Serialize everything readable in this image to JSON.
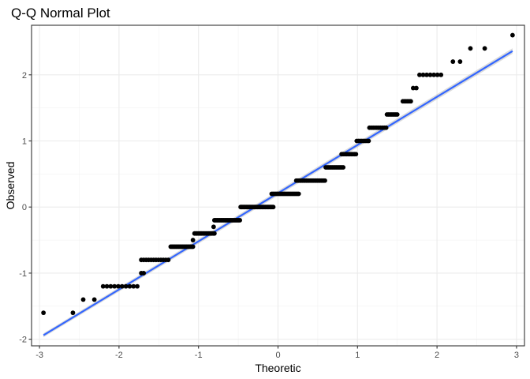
{
  "chart_data": {
    "type": "scatter",
    "title": "Q-Q Normal Plot",
    "xlabel": "Theoretic",
    "ylabel": "Observed",
    "xlim": [
      -3.1,
      3.1
    ],
    "ylim": [
      -2.1,
      2.75
    ],
    "x_ticks": [
      -3,
      -2,
      -1,
      0,
      1,
      2,
      3
    ],
    "x_tick_labels": [
      "-3",
      "-2",
      "-1",
      "0",
      "1",
      "2",
      "3"
    ],
    "y_ticks": [
      -2,
      -1,
      0,
      1,
      2
    ],
    "y_tick_labels": [
      "-2",
      "-1",
      "0",
      "1",
      "2"
    ],
    "grid": true,
    "reference_line": {
      "x1": -2.95,
      "y1": -1.94,
      "x2": 2.95,
      "y2": 2.36,
      "color": "#3366FF"
    },
    "point_color": "#000000",
    "runs": [
      {
        "y": -1.6,
        "x": [
          -2.95,
          -2.58
        ]
      },
      {
        "y": -1.4,
        "x": [
          -2.45,
          -2.31
        ]
      },
      {
        "y": -1.2,
        "x_from": -2.2,
        "x_to": -1.77,
        "n": 10
      },
      {
        "y": -1.0,
        "x_from": -1.72,
        "x_to": -1.69,
        "n": 2
      },
      {
        "y": -0.8,
        "x_from": -1.72,
        "x_to": -1.38,
        "n": 12
      },
      {
        "y": -0.6,
        "x_from": -1.35,
        "x_to": -1.07,
        "n": 18
      },
      {
        "y": -0.5,
        "x": [
          -1.07
        ]
      },
      {
        "y": -0.4,
        "x_from": -1.05,
        "x_to": -0.8,
        "n": 18
      },
      {
        "y": -0.3,
        "x": [
          -0.81
        ]
      },
      {
        "y": -0.2,
        "x_from": -0.8,
        "x_to": -0.48,
        "n": 20
      },
      {
        "y": 0.0,
        "x_from": -0.47,
        "x_to": -0.06,
        "n": 30
      },
      {
        "y": 0.2,
        "x_from": -0.08,
        "x_to": 0.26,
        "n": 22
      },
      {
        "y": 0.4,
        "x_from": 0.23,
        "x_to": 0.59,
        "n": 24
      },
      {
        "y": 0.6,
        "x_from": 0.6,
        "x_to": 0.82,
        "n": 14
      },
      {
        "y": 0.8,
        "x_from": 0.8,
        "x_to": 0.98,
        "n": 10
      },
      {
        "y": 1.0,
        "x_from": 0.99,
        "x_to": 1.14,
        "n": 8
      },
      {
        "y": 1.2,
        "x_from": 1.15,
        "x_to": 1.36,
        "n": 10
      },
      {
        "y": 1.4,
        "x_from": 1.37,
        "x_to": 1.5,
        "n": 8
      },
      {
        "y": 1.6,
        "x_from": 1.57,
        "x_to": 1.67,
        "n": 6
      },
      {
        "y": 1.8,
        "x": [
          1.7,
          1.74
        ]
      },
      {
        "y": 2.0,
        "x_from": 1.78,
        "x_to": 2.05,
        "n": 7
      },
      {
        "y": 2.2,
        "x": [
          2.2,
          2.29
        ]
      },
      {
        "y": 2.4,
        "x": [
          2.42,
          2.6
        ]
      },
      {
        "y": 2.6,
        "x": [
          2.95
        ]
      }
    ]
  }
}
